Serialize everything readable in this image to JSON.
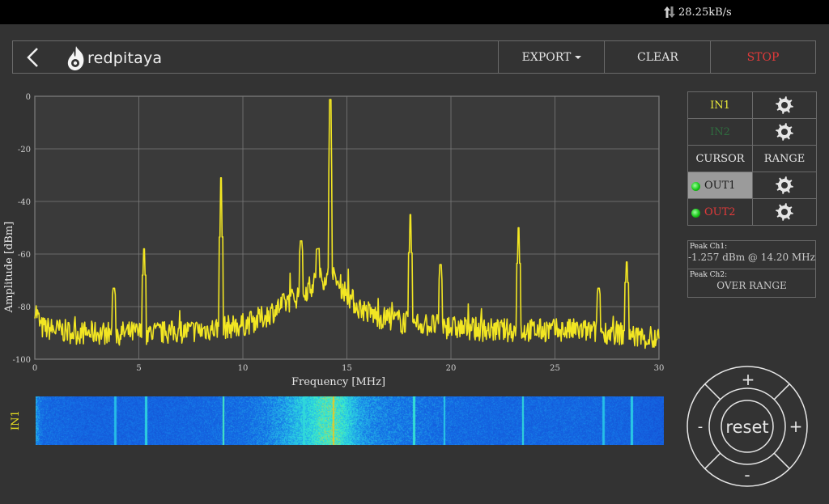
{
  "status": {
    "net_speed": "28.25kB/s"
  },
  "header": {
    "logo_text": "redpitaya",
    "export_label": "EXPORT",
    "clear_label": "CLEAR",
    "stop_label": "STOP"
  },
  "channels": {
    "in1": "IN1",
    "in2": "IN2",
    "cursor": "CURSOR",
    "range": "RANGE",
    "out1": "OUT1",
    "out2": "OUT2"
  },
  "peaks": {
    "ch1_label": "Peak Ch1:",
    "ch1_value": "-1.257  dBm @ 14.20  MHz",
    "ch2_label": "Peak Ch2:",
    "ch2_value": "OVER RANGE"
  },
  "waterfall": {
    "label": "IN1"
  },
  "dpad": {
    "up": "+",
    "down": "-",
    "left": "-",
    "right": "+",
    "center": "reset"
  },
  "colors": {
    "trace": "#f2e623",
    "stop": "#e23a3a",
    "background": "#333333",
    "grid": "#8a8a8a"
  },
  "chart_data": {
    "type": "line",
    "xlabel": "Frequency   [MHz]",
    "ylabel": "Amplitude  [dBm]",
    "xlim": [
      0,
      30
    ],
    "ylim": [
      -100,
      0
    ],
    "x_ticks": [
      0,
      5,
      10,
      15,
      20,
      25,
      30
    ],
    "y_ticks": [
      0,
      -20,
      -40,
      -60,
      -80,
      -100
    ],
    "grid": true,
    "series": [
      {
        "color": "#f2e623",
        "noise_floor": [
          [
            0,
            -80
          ],
          [
            0.3,
            -88
          ],
          [
            2,
            -90
          ],
          [
            4,
            -90
          ],
          [
            6,
            -90
          ],
          [
            8,
            -89
          ],
          [
            10,
            -87
          ],
          [
            11,
            -84
          ],
          [
            12,
            -79
          ],
          [
            13,
            -74
          ],
          [
            13.6,
            -70
          ],
          [
            14.2,
            -68
          ],
          [
            14.8,
            -73
          ],
          [
            15.5,
            -80
          ],
          [
            16.5,
            -84
          ],
          [
            18,
            -86
          ],
          [
            20,
            -88
          ],
          [
            22,
            -89
          ],
          [
            24,
            -89
          ],
          [
            26,
            -89
          ],
          [
            28,
            -90
          ],
          [
            30,
            -93
          ]
        ],
        "peaks": [
          [
            3.8,
            -73
          ],
          [
            5.25,
            -58
          ],
          [
            8.95,
            -31
          ],
          [
            12.8,
            -55
          ],
          [
            13.6,
            -58
          ],
          [
            14.2,
            -1.257
          ],
          [
            18.05,
            -45
          ],
          [
            19.5,
            -64
          ],
          [
            23.25,
            -50
          ],
          [
            27.1,
            -73
          ],
          [
            28.45,
            -63
          ]
        ]
      }
    ]
  }
}
